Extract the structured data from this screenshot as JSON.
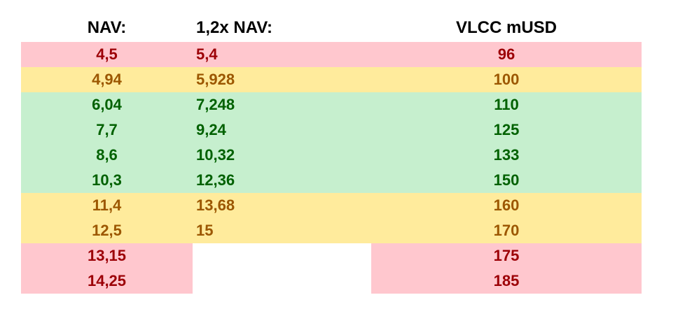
{
  "table": {
    "header": [
      "NAV:",
      "1,2x NAV:",
      "VLCC mUSD"
    ],
    "rows": [
      [
        "4,5",
        "5,4",
        "96"
      ],
      [
        "4,94",
        "5,928",
        "100"
      ],
      [
        "6,04",
        "7,248",
        "110"
      ],
      [
        "7,7",
        "9,24",
        "125"
      ],
      [
        "8,6",
        "10,32",
        "133"
      ],
      [
        "10,3",
        "12,36",
        "150"
      ],
      [
        "11,4",
        "13,68",
        "160"
      ],
      [
        "12,5",
        "15",
        "170"
      ],
      [
        "13,15",
        null,
        "175"
      ],
      [
        "14,25",
        null,
        "185"
      ]
    ],
    "row_colors": [
      {
        "background": "#ffc7ce",
        "text": "#9c0006"
      },
      {
        "background": "#ffeb9c",
        "text": "#9c5700"
      },
      {
        "background": "#c6efce",
        "text": "#006100"
      },
      {
        "background": "#c6efce",
        "text": "#006100"
      },
      {
        "background": "#c6efce",
        "text": "#006100"
      },
      {
        "background": "#c6efce",
        "text": "#006100"
      },
      {
        "background": "#ffeb9c",
        "text": "#9c5700"
      },
      {
        "background": "#ffeb9c",
        "text": "#9c5700"
      },
      {
        "background": "#ffc7ce",
        "text": "#9c0006"
      },
      {
        "background": "#ffc7ce",
        "text": "#9c0006"
      }
    ]
  }
}
